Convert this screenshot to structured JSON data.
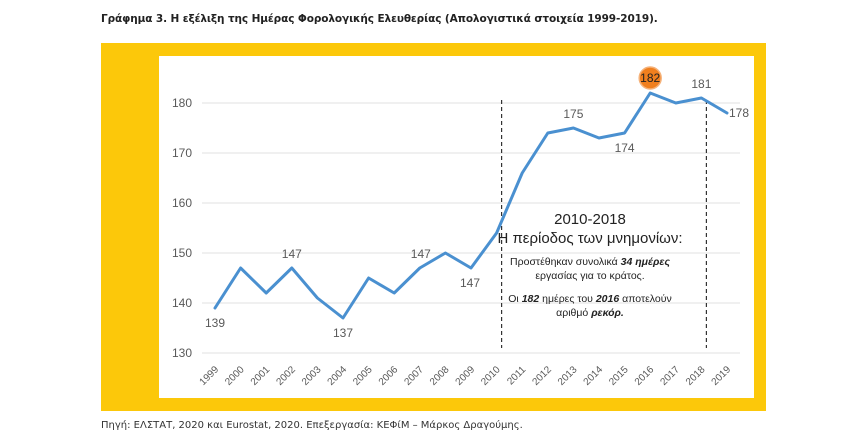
{
  "header": {
    "title": "Γράφημα 3. Η εξέλιξη της Ημέρας Φορολογικής Ελευθερίας (Απολογιστικά στοιχεία 1999-2019)."
  },
  "footer": {
    "source": "Πηγή: ΕΛΣΤΑΤ, 2020 και Eurostat, 2020. Επεξεργασία: ΚΕΦίΜ – Μάρκος Δραγούμης."
  },
  "colors": {
    "frame": "#fcc80a",
    "line": "#4a90d0",
    "highlight": "#f07f1e",
    "grid": "#e2e2e2",
    "text": "#595959"
  },
  "annotation": {
    "period": "2010-2018",
    "subtitle": "Η περίοδος των μνημονίων:",
    "p1_a": "Προστέθηκαν συνολικά ",
    "p1_b": "34 ημέρες",
    "p1_c": "εργασίας για το κράτος.",
    "p2_a": "Οι ",
    "p2_b": "182",
    "p2_c": " ημέρες του ",
    "p2_d": "2016",
    "p2_e": " αποτελούν",
    "p2_f": "αριθμό ",
    "p2_g": "ρεκόρ."
  },
  "chart_data": {
    "type": "line",
    "title": "Γράφημα 3. Η εξέλιξη της Ημέρας Φορολογικής Ελευθερίας (Απολογιστικά στοιχεία 1999-2019).",
    "xlabel": "",
    "ylabel": "",
    "categories": [
      "1999",
      "2000",
      "2001",
      "2002",
      "2003",
      "2004",
      "2005",
      "2006",
      "2007",
      "2008",
      "2009",
      "2010",
      "2011",
      "2012",
      "2013",
      "2014",
      "2015",
      "2016",
      "2017",
      "2018",
      "2019"
    ],
    "series": [
      {
        "name": "Ημέρα Φορολογικής Ελευθερίας",
        "values": [
          139,
          147,
          142,
          147,
          141,
          137,
          145,
          142,
          147,
          150,
          147,
          154,
          166,
          174,
          175,
          173,
          174,
          182,
          180,
          181,
          178
        ]
      }
    ],
    "ylim": [
      130,
      180
    ],
    "yticks": [
      130,
      140,
      150,
      160,
      170,
      180
    ],
    "grid": true,
    "legend": "none",
    "data_labels": [
      {
        "category": "1999",
        "text": "139",
        "pos": "below"
      },
      {
        "category": "2002",
        "text": "147",
        "pos": "above"
      },
      {
        "category": "2004",
        "text": "137",
        "pos": "below"
      },
      {
        "category": "2007",
        "text": "147",
        "pos": "above"
      },
      {
        "category": "2009",
        "text": "147",
        "pos": "below"
      },
      {
        "category": "2013",
        "text": "175",
        "pos": "above"
      },
      {
        "category": "2015",
        "text": "174",
        "pos": "below"
      },
      {
        "category": "2016",
        "text": "182",
        "pos": "highlight"
      },
      {
        "category": "2018",
        "text": "181",
        "pos": "above"
      },
      {
        "category": "2019",
        "text": "178",
        "pos": "right"
      }
    ],
    "reference_lines": [
      {
        "category": "2010",
        "style": "dashed"
      },
      {
        "category": "2018",
        "style": "dashed"
      }
    ]
  }
}
